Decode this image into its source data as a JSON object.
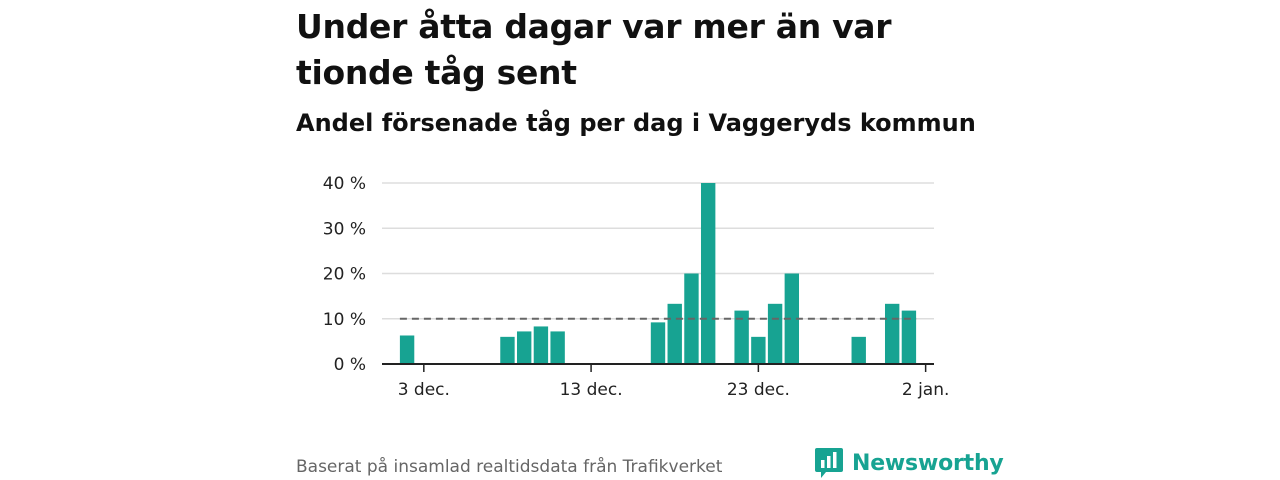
{
  "title": "Under åtta dagar var mer än var tionde tåg sent",
  "subtitle": "Andel försenade tåg per dag i Vaggeryds kommun",
  "footer": {
    "source": "Baserat på insamlad realtidsdata från Trafikverket",
    "brand_name": "Newsworthy",
    "brand_color": "#17a392"
  },
  "chart_data": {
    "type": "bar",
    "bar_color": "#17a392",
    "x_unit": "day",
    "x_start": "2024-12-01",
    "x_end": "2025-01-03",
    "x_ticks": [
      {
        "date": "2024-12-03",
        "label": "3 dec."
      },
      {
        "date": "2024-12-13",
        "label": "13 dec."
      },
      {
        "date": "2024-12-23",
        "label": "23 dec."
      },
      {
        "date": "2025-01-02",
        "label": "2 jan."
      }
    ],
    "y_ticks": [
      {
        "value": 0,
        "label": "0 %"
      },
      {
        "value": 10,
        "label": "10 %"
      },
      {
        "value": 20,
        "label": "20 %"
      },
      {
        "value": 30,
        "label": "30 %"
      },
      {
        "value": 40,
        "label": "40 %"
      }
    ],
    "ylim": [
      0,
      40
    ],
    "grid": true,
    "reference_line": {
      "value": 10,
      "style": "dashed",
      "color": "#666666"
    },
    "data": [
      {
        "date": "2024-12-02",
        "value": 6.3
      },
      {
        "date": "2024-12-08",
        "value": 6
      },
      {
        "date": "2024-12-09",
        "value": 7.2
      },
      {
        "date": "2024-12-10",
        "value": 8.3
      },
      {
        "date": "2024-12-11",
        "value": 7.2
      },
      {
        "date": "2024-12-17",
        "value": 9.2
      },
      {
        "date": "2024-12-18",
        "value": 13.3
      },
      {
        "date": "2024-12-19",
        "value": 20
      },
      {
        "date": "2024-12-20",
        "value": 40
      },
      {
        "date": "2024-12-22",
        "value": 11.8
      },
      {
        "date": "2024-12-23",
        "value": 6
      },
      {
        "date": "2024-12-24",
        "value": 13.3
      },
      {
        "date": "2024-12-25",
        "value": 20
      },
      {
        "date": "2024-12-29",
        "value": 6
      },
      {
        "date": "2024-12-31",
        "value": 13.3
      },
      {
        "date": "2025-01-01",
        "value": 11.8
      }
    ]
  }
}
